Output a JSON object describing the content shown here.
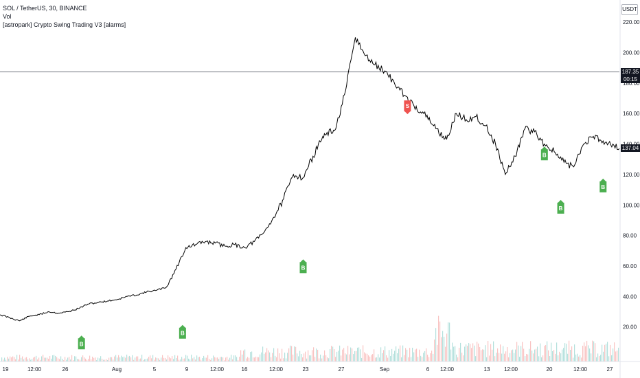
{
  "header": {
    "symbol_line": "SOL / TetherUS, 30, BINANCE",
    "vol_line": "Vol",
    "indicator_line": "[astropark] Crypto Swing Trading V3 [alarms]"
  },
  "currency_label": "USDT",
  "badges": {
    "price": "187.35",
    "countdown": "00:15",
    "last": "137.04"
  },
  "colors": {
    "buy": "#4caf50",
    "sell": "#ef5350",
    "price_line": "#000000",
    "volume_up": "#26a69a",
    "volume_down": "#ef5350"
  },
  "chart_data": {
    "type": "line",
    "ylim": [
      0,
      230
    ],
    "y_ticks": [
      "220.00",
      "200.00",
      "180.00",
      "160.00",
      "140.00",
      "120.00",
      "100.00",
      "80.00",
      "60.00",
      "40.00",
      "20.00"
    ],
    "x_ticks": [
      "19",
      "12:00",
      "26",
      "Aug",
      "5",
      "9",
      "12:00",
      "16",
      "12:00",
      "23",
      "27",
      "Sep",
      "6",
      "12:00",
      "13",
      "12:00",
      "20",
      "12:00",
      "27"
    ],
    "horizontal_line": 187.35,
    "series": [
      {
        "x": [
          0,
          3,
          6,
          9,
          12,
          15,
          18,
          21,
          24,
          27,
          30,
          33,
          36,
          39,
          42,
          45,
          48,
          51,
          54,
          57,
          60,
          63,
          66,
          69,
          72,
          75,
          78,
          81,
          84,
          87,
          90,
          93,
          96,
          99,
          100,
          103,
          106,
          109,
          112,
          115,
          118,
          121,
          124,
          127,
          130,
          133,
          136,
          137,
          140,
          143,
          146,
          149,
          152,
          155,
          158,
          161,
          164,
          167,
          170,
          173,
          176,
          179,
          182,
          185,
          188,
          190
        ],
        "values": [
          28,
          26,
          24,
          27,
          28,
          30,
          29,
          30,
          32,
          35,
          36,
          37,
          38,
          40,
          41,
          43,
          44,
          46,
          58,
          72,
          74,
          76,
          75,
          73,
          74,
          72,
          76,
          82,
          92,
          104,
          120,
          118,
          132,
          145,
          146,
          150,
          175,
          210,
          198,
          192,
          188,
          180,
          172,
          165,
          160,
          152,
          145,
          143,
          160,
          156,
          158,
          152,
          140,
          120,
          132,
          150,
          148,
          140,
          135,
          128,
          125,
          140,
          145,
          142,
          140,
          137
        ]
      }
    ],
    "signals": [
      {
        "label": "B",
        "x": 25,
        "value": 8,
        "type": "buy"
      },
      {
        "label": "B",
        "x": 56,
        "value": 15,
        "type": "buy"
      },
      {
        "label": "B",
        "x": 93,
        "value": 58,
        "type": "buy"
      },
      {
        "label": "S",
        "x": 125,
        "value": 165,
        "type": "sell"
      },
      {
        "label": "B",
        "x": 167,
        "value": 132,
        "type": "buy"
      },
      {
        "label": "B",
        "x": 172,
        "value": 97,
        "type": "buy"
      },
      {
        "label": "B",
        "x": 185,
        "value": 111,
        "type": "buy"
      }
    ]
  }
}
